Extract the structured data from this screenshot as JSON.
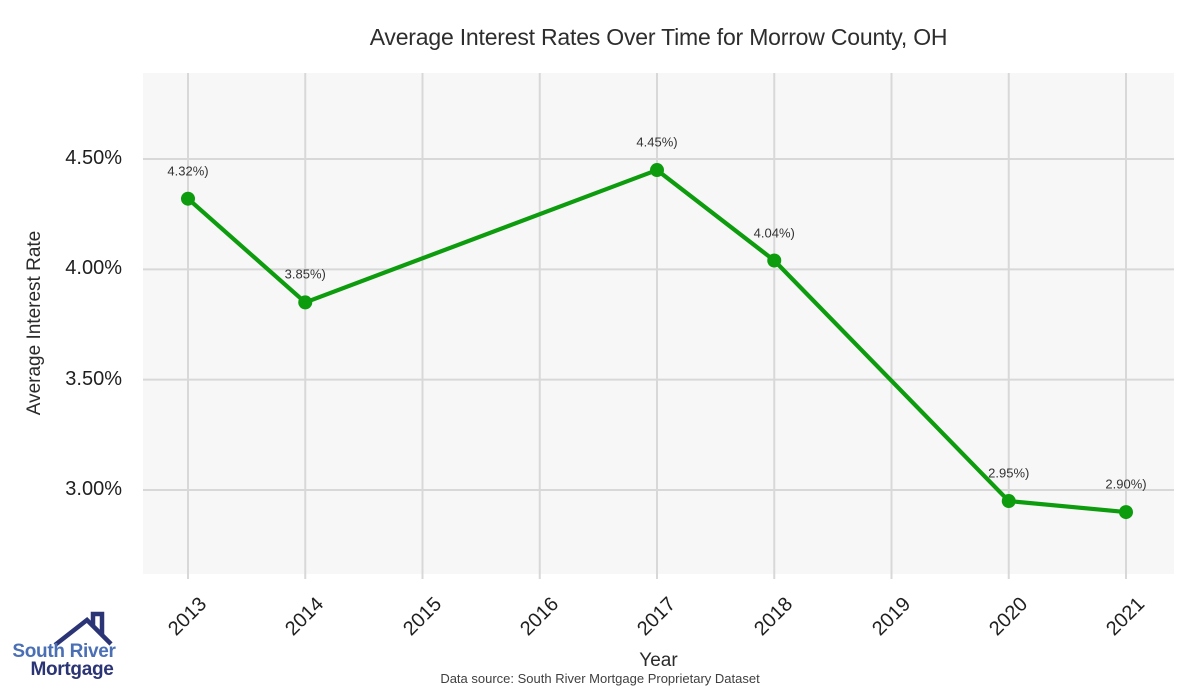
{
  "header": {
    "title": "Average Interest Rates Over Time for Morrow County, OH"
  },
  "chart_data": {
    "type": "line",
    "title": "Average Interest Rates Over Time for Morrow County, OH",
    "xlabel": "Year",
    "ylabel": "Average Interest Rate",
    "x_categories": [
      "2013",
      "2014",
      "2015",
      "2016",
      "2017",
      "2018",
      "2019",
      "2020",
      "2021"
    ],
    "y_ticks": [
      {
        "label": "4.50%",
        "value": 4.5
      },
      {
        "label": "4.00%",
        "value": 4.0
      },
      {
        "label": "3.50%",
        "value": 3.5
      },
      {
        "label": "3.00%",
        "value": 3.0
      }
    ],
    "ylim": [
      2.61,
      4.89
    ],
    "grid": true,
    "legend": false,
    "series": [
      {
        "name": "Average Interest Rate",
        "color": "#0d9c0d",
        "points": [
          {
            "year": "2013",
            "value": 4.32,
            "label": "4.32%)"
          },
          {
            "year": "2014",
            "value": 3.85,
            "label": "3.85%)"
          },
          {
            "year": "2017",
            "value": 4.45,
            "label": "4.45%)"
          },
          {
            "year": "2018",
            "value": 4.04,
            "label": "4.04%)"
          },
          {
            "year": "2020",
            "value": 2.95,
            "label": "2.95%)"
          },
          {
            "year": "2021",
            "value": 2.9,
            "label": "2.90%)"
          }
        ]
      }
    ]
  },
  "axes": {
    "xlabel": "Year",
    "ylabel": "Average Interest Rate"
  },
  "footer": {
    "source": "Data source: South River Mortgage Proprietary Dataset"
  },
  "logo": {
    "line1": "South River",
    "line2": "Mortgage",
    "color_primary": "#4a6fb5",
    "color_secondary": "#2b3576"
  },
  "colors": {
    "line": "#0d9c0d",
    "panel": "#f7f7f7",
    "grid": "#d8d8d8",
    "label_text": "#333333"
  }
}
